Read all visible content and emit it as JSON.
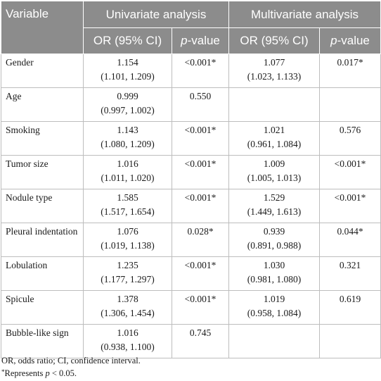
{
  "table": {
    "header": {
      "variable": "Variable",
      "univariate": "Univariate analysis",
      "multivariate": "Multivariate analysis",
      "or_ci": "OR (95% CI)",
      "p_prefix": "p",
      "p_suffix": "-value"
    },
    "rows": [
      {
        "variable": "Gender",
        "uni_or": "1.154",
        "uni_ci": "(1.101, 1.209)",
        "uni_p": "<0.001*",
        "multi_or": "1.077",
        "multi_ci": "(1.023, 1.133)",
        "multi_p": "0.017*"
      },
      {
        "variable": "Age",
        "uni_or": "0.999",
        "uni_ci": "(0.997, 1.002)",
        "uni_p": "0.550",
        "multi_or": "",
        "multi_ci": "",
        "multi_p": ""
      },
      {
        "variable": "Smoking",
        "uni_or": "1.143",
        "uni_ci": "(1.080, 1.209)",
        "uni_p": "<0.001*",
        "multi_or": "1.021",
        "multi_ci": "(0.961, 1.084)",
        "multi_p": "0.576"
      },
      {
        "variable": "Tumor size",
        "uni_or": "1.016",
        "uni_ci": "(1.011, 1.020)",
        "uni_p": "<0.001*",
        "multi_or": "1.009",
        "multi_ci": "(1.005, 1.013)",
        "multi_p": "<0.001*"
      },
      {
        "variable": "Nodule type",
        "uni_or": "1.585",
        "uni_ci": "(1.517, 1.654)",
        "uni_p": "<0.001*",
        "multi_or": "1.529",
        "multi_ci": "(1.449, 1.613)",
        "multi_p": "<0.001*"
      },
      {
        "variable": "Pleural indentation",
        "uni_or": "1.076",
        "uni_ci": "(1.019, 1.138)",
        "uni_p": "0.028*",
        "multi_or": "0.939",
        "multi_ci": "(0.891, 0.988)",
        "multi_p": "0.044*"
      },
      {
        "variable": "Lobulation",
        "uni_or": "1.235",
        "uni_ci": "(1.177, 1.297)",
        "uni_p": "<0.001*",
        "multi_or": "1.030",
        "multi_ci": "(0.981, 1.080)",
        "multi_p": "0.321"
      },
      {
        "variable": "Spicule",
        "uni_or": "1.378",
        "uni_ci": "(1.306, 1.454)",
        "uni_p": "<0.001*",
        "multi_or": "1.019",
        "multi_ci": "(0.958, 1.084)",
        "multi_p": "0.619"
      },
      {
        "variable": "Bubble-like sign",
        "uni_or": "1.016",
        "uni_ci": "(0.938, 1.100)",
        "uni_p": "0.745",
        "multi_or": "",
        "multi_ci": "",
        "multi_p": ""
      }
    ]
  },
  "footnotes": {
    "abbreviations": "OR, odds ratio; CI, confidence interval.",
    "significance_star": "*",
    "significance_text": "Represents ",
    "significance_p": "p",
    "significance_rest": " < 0.05."
  },
  "colors": {
    "header_bg": "#8c8c8c",
    "header_text": "#ffffff",
    "grid": "#bdbdbd"
  }
}
